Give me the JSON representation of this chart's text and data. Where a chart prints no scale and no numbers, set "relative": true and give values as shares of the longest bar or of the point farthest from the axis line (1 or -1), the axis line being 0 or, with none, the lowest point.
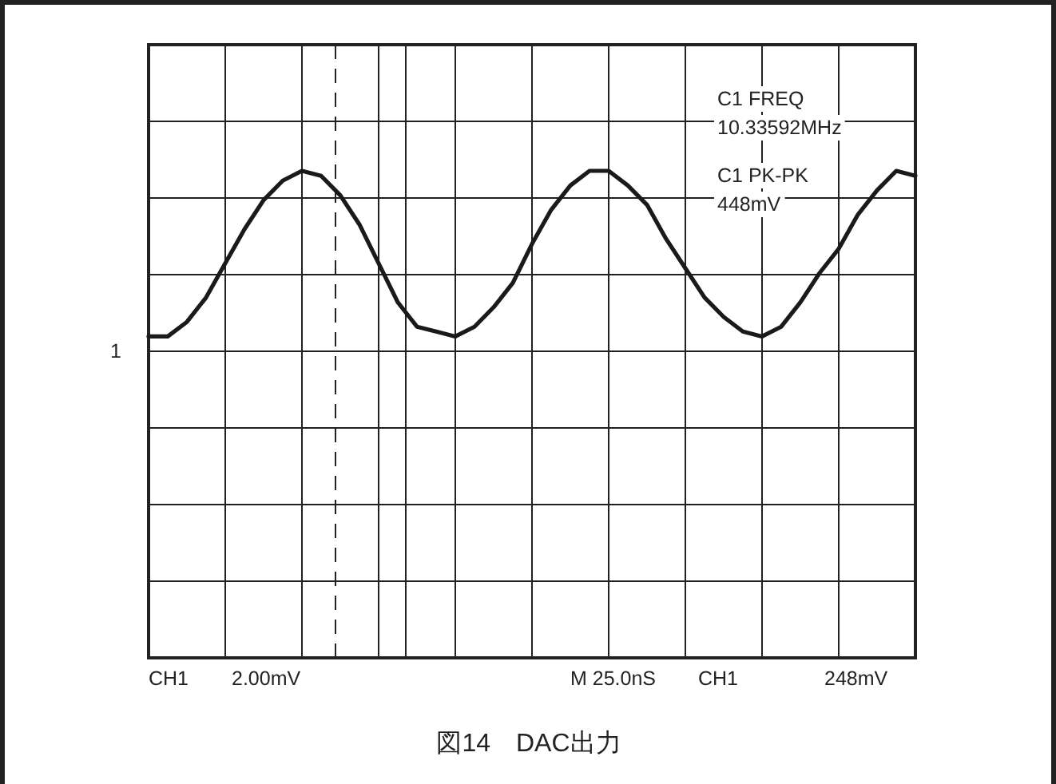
{
  "chart_data": {
    "type": "line",
    "relative": true,
    "title": "図14　DAC出力",
    "grid": true,
    "color": "#1a1a1a",
    "categories": [
      null,
      null,
      null,
      null,
      null,
      null,
      null,
      null,
      null,
      null,
      null,
      null,
      null,
      null,
      null,
      null,
      null,
      null,
      null,
      null,
      null,
      null,
      null,
      null,
      null,
      null,
      null,
      null,
      null,
      null,
      null,
      null,
      null,
      null,
      null,
      null,
      null,
      null,
      null,
      null,
      null
    ],
    "values": [
      0.66,
      0.66,
      0.69,
      0.74,
      0.81,
      0.88,
      0.94,
      0.98,
      1.0,
      0.99,
      0.95,
      0.89,
      0.81,
      0.73,
      0.68,
      0.67,
      0.66,
      0.68,
      0.72,
      0.77,
      0.85,
      0.92,
      0.97,
      1.0,
      1.0,
      0.97,
      0.93,
      0.86,
      0.8,
      0.74,
      0.7,
      0.67,
      0.66,
      0.68,
      0.73,
      0.79,
      0.84,
      0.91,
      0.96,
      1.0,
      0.99
    ],
    "annotations": [
      "C1 FREQ",
      "10.33592MHz",
      "C1 PK-PK",
      "448mV",
      "1",
      "CH1",
      "2.00mV",
      "M 25.0nS",
      "CH1",
      "248mV"
    ]
  }
}
